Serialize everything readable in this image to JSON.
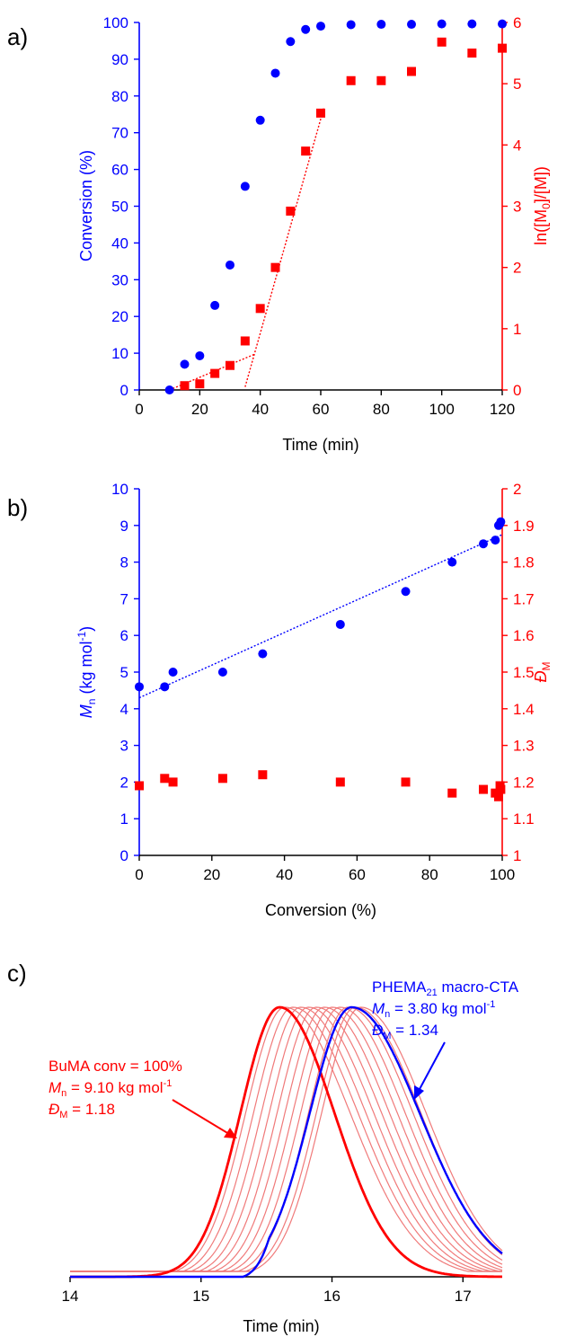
{
  "chart_data": [
    {
      "type": "scatter",
      "panel_label": "a)",
      "xlabel": "Time (min)",
      "ylabel_left": "Conversion (%)",
      "ylabel_right": "ln([M0]/[M])",
      "xlim": [
        0,
        120
      ],
      "ylim_left": [
        0,
        100
      ],
      "ylim_right": [
        0,
        6
      ],
      "x_ticks": [
        "0",
        "20",
        "40",
        "60",
        "80",
        "100",
        "120"
      ],
      "y_left_ticks": [
        "0",
        "10",
        "20",
        "30",
        "40",
        "50",
        "60",
        "70",
        "80",
        "90",
        "100"
      ],
      "y_right_ticks": [
        "0",
        "1",
        "2",
        "3",
        "4",
        "5",
        "6"
      ],
      "series": [
        {
          "name": "Conversion",
          "axis": "left",
          "marker": "circle",
          "color": "#0000ff",
          "x": [
            10,
            15,
            20,
            25,
            30,
            35,
            40,
            45,
            50,
            55,
            60,
            70,
            80,
            90,
            100,
            110,
            120
          ],
          "y": [
            0,
            7,
            9.3,
            23,
            34,
            55.4,
            73.4,
            86.2,
            94.8,
            98.1,
            99,
            99.4,
            99.5,
            99.5,
            99.6,
            99.6,
            99.6
          ]
        },
        {
          "name": "ln([M0]/[M])",
          "axis": "right",
          "marker": "square",
          "color": "#ff0000",
          "x": [
            15,
            20,
            25,
            30,
            35,
            40,
            45,
            50,
            55,
            60,
            70,
            80,
            90,
            100,
            110,
            120
          ],
          "y": [
            0.07,
            0.1,
            0.27,
            0.4,
            0.8,
            1.33,
            2.0,
            2.92,
            3.9,
            4.52,
            5.05,
            5.05,
            5.2,
            5.68,
            5.5,
            5.58
          ]
        }
      ],
      "fit_lines": [
        {
          "axis": "right",
          "color": "#ff0000",
          "x": [
            10,
            38
          ],
          "y": [
            0,
            0.58
          ]
        },
        {
          "axis": "right",
          "color": "#ff0000",
          "x": [
            35,
            61
          ],
          "y": [
            0.05,
            4.6
          ]
        }
      ]
    },
    {
      "type": "scatter",
      "panel_label": "b)",
      "xlabel": "Conversion (%)",
      "ylabel_left": "Mn (kg mol-1)",
      "ylabel_right": "ĐM",
      "xlim": [
        0,
        100
      ],
      "ylim_left": [
        0,
        10
      ],
      "ylim_right": [
        1,
        2
      ],
      "x_ticks": [
        "0",
        "20",
        "40",
        "60",
        "80",
        "100"
      ],
      "y_left_ticks": [
        "0",
        "1",
        "2",
        "3",
        "4",
        "5",
        "6",
        "7",
        "8",
        "9",
        "10"
      ],
      "y_right_ticks": [
        "1",
        "1.1",
        "1.2",
        "1.3",
        "1.4",
        "1.5",
        "1.6",
        "1.7",
        "1.8",
        "1.9",
        "2"
      ],
      "series": [
        {
          "name": "Mn",
          "axis": "left",
          "marker": "circle",
          "color": "#0000ff",
          "x": [
            0,
            7,
            9.3,
            23,
            34,
            55.4,
            73.4,
            86.2,
            94.8,
            98.1,
            99,
            99.4,
            99.6
          ],
          "y": [
            4.6,
            4.6,
            5.0,
            5.0,
            5.5,
            6.3,
            7.2,
            8.0,
            8.5,
            8.6,
            9.0,
            9.05,
            9.1
          ]
        },
        {
          "name": "ĐM",
          "axis": "right",
          "marker": "square",
          "color": "#ff0000",
          "x": [
            0,
            7,
            9.3,
            23,
            34,
            55.4,
            73.4,
            86.2,
            94.8,
            98.1,
            99,
            99.4,
            99.6
          ],
          "y": [
            1.19,
            1.21,
            1.2,
            1.21,
            1.22,
            1.2,
            1.2,
            1.17,
            1.18,
            1.17,
            1.16,
            1.19,
            1.18
          ]
        }
      ],
      "fit_lines": [
        {
          "axis": "left",
          "color": "#0000ff",
          "x": [
            0,
            100
          ],
          "y": [
            4.3,
            8.75
          ]
        }
      ]
    },
    {
      "type": "line",
      "panel_label": "c)",
      "xlabel": "Time (min)",
      "xlim": [
        14,
        17.3
      ],
      "x_ticks": [
        "14",
        "15",
        "16",
        "17"
      ],
      "macro_cta": {
        "color": "#0000ff",
        "peak": 16.15,
        "sigma_left": 0.32,
        "sigma_right": 0.52,
        "onset": 15.32,
        "label_line1": "PHEMA",
        "label_sub": "21",
        "label_line1_rest": " macro-CTA",
        "mn_sym": "M",
        "mn_sub": "n",
        "mn_text": " = 3.80 kg mol",
        "mn_sup": "-1",
        "d_sym": "Đ",
        "d_sub": "M",
        "d_text": " = 1.34"
      },
      "final": {
        "color": "#ff0000",
        "peak": 15.6,
        "sigma_left": 0.3,
        "sigma_right": 0.42,
        "label_line1": "BuMA conv = 100%",
        "mn_sym": "M",
        "mn_sub": "n",
        "mn_text": " = 9.10 kg mol",
        "mn_sup": "-1",
        "d_sym": "Đ",
        "d_sub": "M",
        "d_text": " = 1.18"
      },
      "intermediate_peaks": [
        15.64,
        15.7,
        15.76,
        15.82,
        15.88,
        15.94,
        16.0,
        16.06,
        16.12,
        16.18,
        16.22
      ],
      "intermediate_color": "#f07a7a"
    }
  ]
}
